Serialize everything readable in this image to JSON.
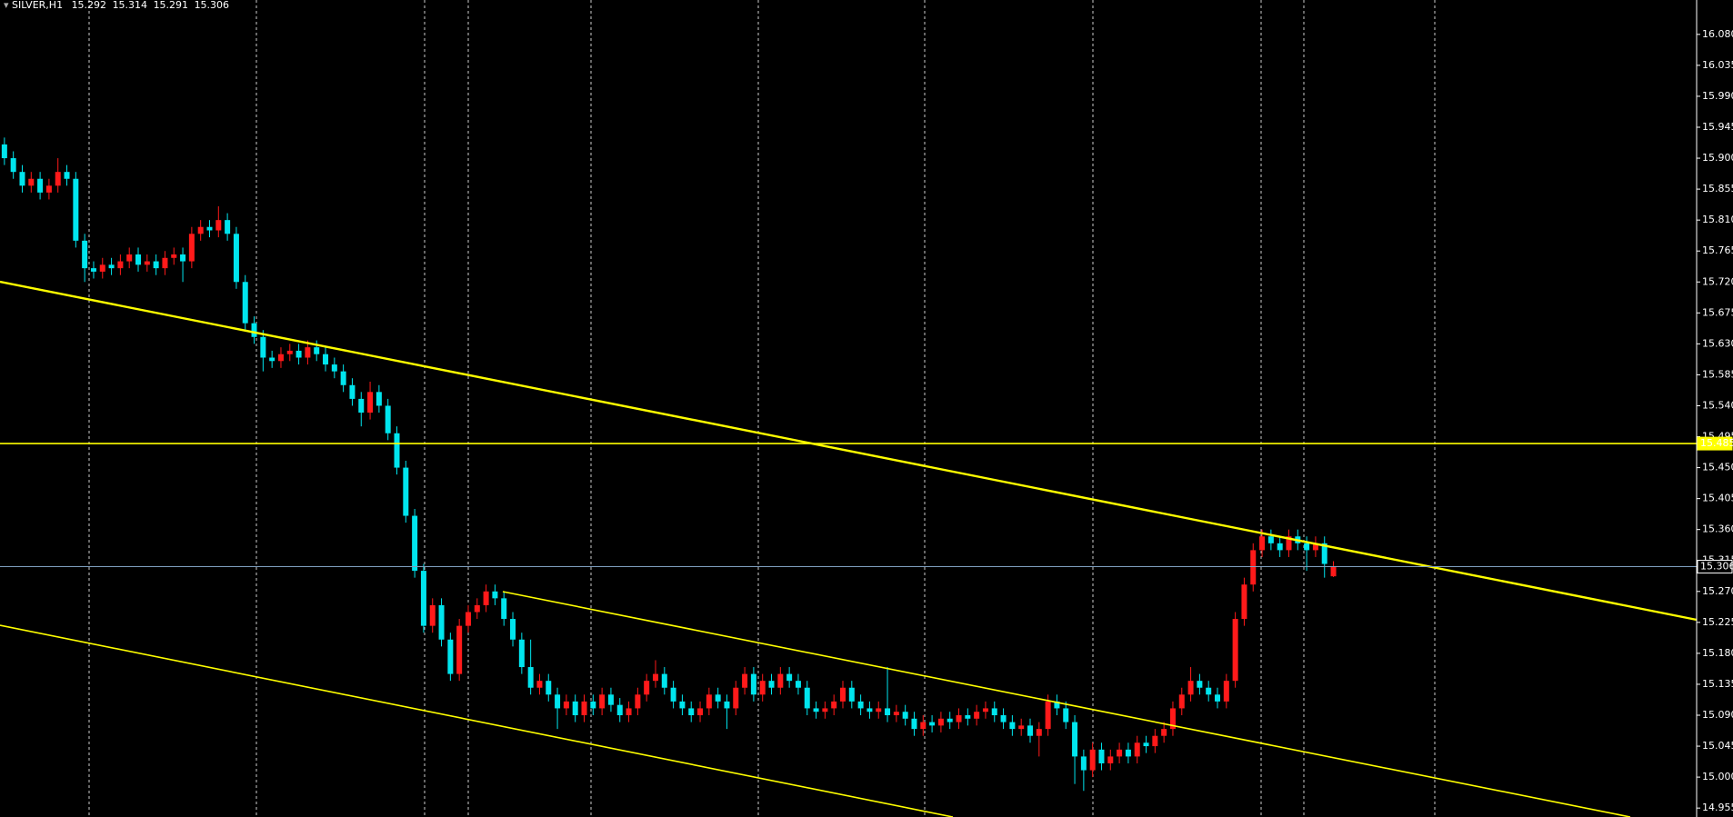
{
  "chart_data": {
    "type": "candlestick",
    "title": "SILVER,H1",
    "bull_color": "#ff1a1a",
    "bear_color": "#00e5ee",
    "ylim": [
      14.942,
      16.13
    ],
    "yticks": [
      14.955,
      {
        "value": 15.0,
        "label": "15.000"
      },
      15.045,
      {
        "value": 15.09,
        "label": "15.090"
      },
      15.135,
      {
        "value": 15.18,
        "label": "15.180"
      },
      15.225,
      {
        "value": 15.27,
        "label": "15.270"
      },
      15.315,
      {
        "value": 15.36,
        "label": "15.360"
      },
      15.405,
      {
        "value": 15.45,
        "label": "15.450"
      },
      15.495,
      {
        "value": 15.54,
        "label": "15.540"
      },
      15.585,
      {
        "value": 15.63,
        "label": "15.630"
      },
      15.675,
      {
        "value": 15.72,
        "label": "15.720"
      },
      15.765,
      {
        "value": 15.81,
        "label": "15.810"
      },
      15.855,
      {
        "value": 15.9,
        "label": "15.900"
      },
      15.945,
      {
        "value": 15.99,
        "label": "15.990"
      },
      16.035,
      {
        "value": 16.08,
        "label": "16.080"
      }
    ],
    "levels": [
      {
        "value": 15.485,
        "color": "#ffff00"
      },
      {
        "value": 15.306,
        "color": "#7f9fbf"
      }
    ],
    "ohlc": [
      [
        15.92,
        15.93,
        15.89,
        15.9
      ],
      [
        15.9,
        15.91,
        15.87,
        15.88
      ],
      [
        15.88,
        15.89,
        15.85,
        15.86
      ],
      [
        15.86,
        15.88,
        15.85,
        15.87
      ],
      [
        15.87,
        15.88,
        15.84,
        15.85
      ],
      [
        15.85,
        15.87,
        15.84,
        15.86
      ],
      [
        15.86,
        15.9,
        15.85,
        15.88
      ],
      [
        15.88,
        15.89,
        15.86,
        15.87
      ],
      [
        15.87,
        15.88,
        15.77,
        15.78
      ],
      [
        15.78,
        15.79,
        15.72,
        15.74
      ],
      [
        15.74,
        15.75,
        15.725,
        15.735
      ],
      [
        15.735,
        15.755,
        15.725,
        15.745
      ],
      [
        15.745,
        15.755,
        15.73,
        15.74
      ],
      [
        15.74,
        15.76,
        15.73,
        15.75
      ],
      [
        15.75,
        15.77,
        15.74,
        15.76
      ],
      [
        15.76,
        15.77,
        15.735,
        15.745
      ],
      [
        15.745,
        15.76,
        15.735,
        15.75
      ],
      [
        15.75,
        15.76,
        15.73,
        15.74
      ],
      [
        15.74,
        15.765,
        15.73,
        15.755
      ],
      [
        15.755,
        15.77,
        15.745,
        15.76
      ],
      [
        15.76,
        15.77,
        15.72,
        15.75
      ],
      [
        15.75,
        15.8,
        15.74,
        15.79
      ],
      [
        15.79,
        15.81,
        15.78,
        15.8
      ],
      [
        15.8,
        15.81,
        15.785,
        15.795
      ],
      [
        15.795,
        15.83,
        15.785,
        15.81
      ],
      [
        15.81,
        15.82,
        15.78,
        15.79
      ],
      [
        15.79,
        15.8,
        15.71,
        15.72
      ],
      [
        15.72,
        15.73,
        15.65,
        15.66
      ],
      [
        15.66,
        15.67,
        15.63,
        15.64
      ],
      [
        15.64,
        15.65,
        15.59,
        15.61
      ],
      [
        15.61,
        15.62,
        15.595,
        15.605
      ],
      [
        15.605,
        15.625,
        15.595,
        15.615
      ],
      [
        15.615,
        15.63,
        15.605,
        15.62
      ],
      [
        15.62,
        15.63,
        15.6,
        15.61
      ],
      [
        15.61,
        15.635,
        15.6,
        15.625
      ],
      [
        15.625,
        15.635,
        15.605,
        15.615
      ],
      [
        15.615,
        15.625,
        15.59,
        15.6
      ],
      [
        15.6,
        15.61,
        15.58,
        15.59
      ],
      [
        15.59,
        15.6,
        15.56,
        15.57
      ],
      [
        15.57,
        15.58,
        15.54,
        15.55
      ],
      [
        15.55,
        15.56,
        15.51,
        15.53
      ],
      [
        15.53,
        15.575,
        15.52,
        15.56
      ],
      [
        15.56,
        15.57,
        15.53,
        15.54
      ],
      [
        15.54,
        15.55,
        15.49,
        15.5
      ],
      [
        15.5,
        15.51,
        15.44,
        15.45
      ],
      [
        15.45,
        15.46,
        15.37,
        15.38
      ],
      [
        15.38,
        15.39,
        15.29,
        15.3
      ],
      [
        15.3,
        15.31,
        15.21,
        15.22
      ],
      [
        15.22,
        15.26,
        15.21,
        15.25
      ],
      [
        15.25,
        15.26,
        15.19,
        15.2
      ],
      [
        15.2,
        15.21,
        15.14,
        15.15
      ],
      [
        15.15,
        15.23,
        15.14,
        15.22
      ],
      [
        15.22,
        15.25,
        15.21,
        15.24
      ],
      [
        15.24,
        15.26,
        15.23,
        15.25
      ],
      [
        15.25,
        15.28,
        15.24,
        15.27
      ],
      [
        15.27,
        15.28,
        15.25,
        15.26
      ],
      [
        15.26,
        15.27,
        15.22,
        15.23
      ],
      [
        15.23,
        15.24,
        15.19,
        15.2
      ],
      [
        15.2,
        15.21,
        15.15,
        15.16
      ],
      [
        15.16,
        15.2,
        15.12,
        15.13
      ],
      [
        15.13,
        15.15,
        15.12,
        15.14
      ],
      [
        15.14,
        15.15,
        15.11,
        15.12
      ],
      [
        15.12,
        15.13,
        15.07,
        15.1
      ],
      [
        15.1,
        15.12,
        15.09,
        15.11
      ],
      [
        15.11,
        15.12,
        15.08,
        15.09
      ],
      [
        15.09,
        15.12,
        15.08,
        15.11
      ],
      [
        15.11,
        15.12,
        15.09,
        15.1
      ],
      [
        15.1,
        15.13,
        15.09,
        15.12
      ],
      [
        15.12,
        15.13,
        15.095,
        15.105
      ],
      [
        15.105,
        15.115,
        15.08,
        15.09
      ],
      [
        15.09,
        15.11,
        15.08,
        15.1
      ],
      [
        15.1,
        15.13,
        15.09,
        15.12
      ],
      [
        15.12,
        15.15,
        15.11,
        15.14
      ],
      [
        15.14,
        15.17,
        15.13,
        15.15
      ],
      [
        15.15,
        15.16,
        15.12,
        15.13
      ],
      [
        15.13,
        15.14,
        15.1,
        15.11
      ],
      [
        15.11,
        15.12,
        15.09,
        15.1
      ],
      [
        15.1,
        15.11,
        15.08,
        15.09
      ],
      [
        15.09,
        15.11,
        15.08,
        15.1
      ],
      [
        15.1,
        15.13,
        15.09,
        15.12
      ],
      [
        15.12,
        15.13,
        15.1,
        15.11
      ],
      [
        15.11,
        15.12,
        15.07,
        15.1
      ],
      [
        15.1,
        15.14,
        15.09,
        15.13
      ],
      [
        15.13,
        15.16,
        15.12,
        15.15
      ],
      [
        15.15,
        15.16,
        15.11,
        15.12
      ],
      [
        15.12,
        15.15,
        15.11,
        15.14
      ],
      [
        15.14,
        15.15,
        15.12,
        15.13
      ],
      [
        15.13,
        15.16,
        15.12,
        15.15
      ],
      [
        15.15,
        15.16,
        15.13,
        15.14
      ],
      [
        15.14,
        15.15,
        15.12,
        15.13
      ],
      [
        15.13,
        15.14,
        15.09,
        15.1
      ],
      [
        15.1,
        15.11,
        15.085,
        15.095
      ],
      [
        15.095,
        15.11,
        15.085,
        15.1
      ],
      [
        15.1,
        15.12,
        15.09,
        15.11
      ],
      [
        15.11,
        15.14,
        15.1,
        15.13
      ],
      [
        15.13,
        15.14,
        15.1,
        15.11
      ],
      [
        15.11,
        15.12,
        15.09,
        15.1
      ],
      [
        15.1,
        15.11,
        15.085,
        15.095
      ],
      [
        15.095,
        15.11,
        15.085,
        15.1
      ],
      [
        15.1,
        15.16,
        15.08,
        15.09
      ],
      [
        15.09,
        15.105,
        15.08,
        15.095
      ],
      [
        15.095,
        15.105,
        15.075,
        15.085
      ],
      [
        15.085,
        15.095,
        15.06,
        15.07
      ],
      [
        15.07,
        15.09,
        15.06,
        15.08
      ],
      [
        15.08,
        15.09,
        15.065,
        15.075
      ],
      [
        15.075,
        15.095,
        15.065,
        15.085
      ],
      [
        15.085,
        15.095,
        15.07,
        15.08
      ],
      [
        15.08,
        15.1,
        15.07,
        15.09
      ],
      [
        15.09,
        15.1,
        15.075,
        15.085
      ],
      [
        15.085,
        15.105,
        15.075,
        15.095
      ],
      [
        15.095,
        15.11,
        15.085,
        15.1
      ],
      [
        15.1,
        15.11,
        15.08,
        15.09
      ],
      [
        15.09,
        15.1,
        15.07,
        15.08
      ],
      [
        15.08,
        15.09,
        15.06,
        15.07
      ],
      [
        15.07,
        15.085,
        15.06,
        15.075
      ],
      [
        15.075,
        15.085,
        15.05,
        15.06
      ],
      [
        15.06,
        15.08,
        15.03,
        15.07
      ],
      [
        15.07,
        15.12,
        15.06,
        15.11
      ],
      [
        15.11,
        15.12,
        15.09,
        15.1
      ],
      [
        15.1,
        15.11,
        15.07,
        15.08
      ],
      [
        15.08,
        15.09,
        14.99,
        15.03
      ],
      [
        15.03,
        15.04,
        14.98,
        15.01
      ],
      [
        15.01,
        15.05,
        15.0,
        15.04
      ],
      [
        15.04,
        15.05,
        15.01,
        15.02
      ],
      [
        15.02,
        15.04,
        15.01,
        15.03
      ],
      [
        15.03,
        15.05,
        15.02,
        15.04
      ],
      [
        15.04,
        15.05,
        15.02,
        15.03
      ],
      [
        15.03,
        15.06,
        15.02,
        15.05
      ],
      [
        15.05,
        15.06,
        15.035,
        15.045
      ],
      [
        15.045,
        15.07,
        15.035,
        15.06
      ],
      [
        15.06,
        15.08,
        15.05,
        15.07
      ],
      [
        15.07,
        15.11,
        15.06,
        15.1
      ],
      [
        15.1,
        15.13,
        15.09,
        15.12
      ],
      [
        15.12,
        15.16,
        15.11,
        15.14
      ],
      [
        15.14,
        15.15,
        15.12,
        15.13
      ],
      [
        15.13,
        15.14,
        15.11,
        15.12
      ],
      [
        15.12,
        15.13,
        15.1,
        15.11
      ],
      [
        15.11,
        15.15,
        15.1,
        15.14
      ],
      [
        15.14,
        15.24,
        15.13,
        15.23
      ],
      [
        15.23,
        15.29,
        15.22,
        15.28
      ],
      [
        15.28,
        15.34,
        15.27,
        15.33
      ],
      [
        15.33,
        15.36,
        15.32,
        15.35
      ],
      [
        15.35,
        15.36,
        15.33,
        15.34
      ],
      [
        15.34,
        15.35,
        15.32,
        15.33
      ],
      [
        15.33,
        15.36,
        15.32,
        15.35
      ],
      [
        15.35,
        15.36,
        15.33,
        15.34
      ],
      [
        15.34,
        15.35,
        15.3,
        15.33
      ],
      [
        15.33,
        15.35,
        15.32,
        15.34
      ],
      [
        15.34,
        15.35,
        15.29,
        15.31
      ],
      [
        15.292,
        15.314,
        15.291,
        15.306
      ]
    ]
  }
}
